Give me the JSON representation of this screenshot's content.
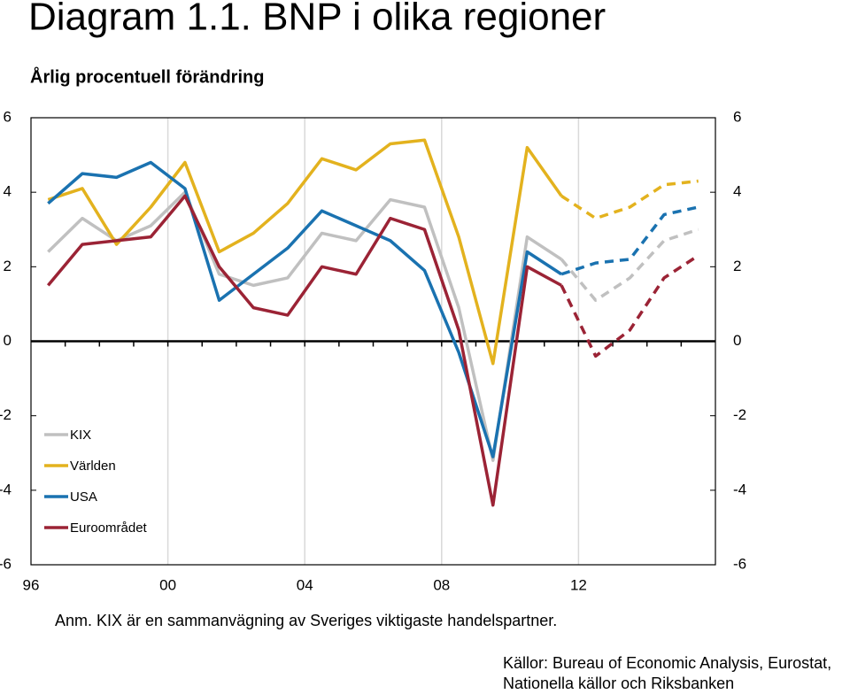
{
  "chart_data": {
    "type": "line",
    "title": "Diagram 1.1. BNP i olika regioner",
    "subtitle": "Årlig procentuell förändring",
    "note": "Anm. KIX är en sammanvägning av Sveriges viktigaste handelspartner.",
    "source": [
      "Källor: Bureau of Economic Analysis, Eurostat,",
      "Nationella källor och Riksbanken"
    ],
    "categories": [
      "96",
      null,
      null,
      null,
      "00",
      null,
      null,
      null,
      "04",
      null,
      null,
      null,
      "08",
      null,
      null,
      null,
      "12",
      null,
      null,
      null
    ],
    "dashed_from": 15,
    "ylim": [
      -6,
      6
    ],
    "yticks": [
      -6,
      -4,
      -2,
      0,
      2,
      4,
      6
    ],
    "y2lim": [
      -6,
      6
    ],
    "y2ticks": [
      -6,
      -4,
      -2,
      0,
      2,
      4,
      6
    ],
    "grid": true,
    "legend": "lower left",
    "series": [
      {
        "name": "KIX",
        "color": "#c0c0c0",
        "values": [
          2.4,
          3.3,
          2.7,
          3.1,
          4.0,
          1.8,
          1.5,
          1.7,
          2.9,
          2.7,
          3.8,
          3.6,
          0.9,
          -3.2,
          2.8,
          2.2,
          1.1,
          1.7,
          2.7,
          3.0
        ]
      },
      {
        "name": "Världen",
        "color": "#e3b21e",
        "values": [
          3.8,
          4.1,
          2.6,
          3.6,
          4.8,
          2.4,
          2.9,
          3.7,
          4.9,
          4.6,
          5.3,
          5.4,
          2.8,
          -0.6,
          5.2,
          3.9,
          3.3,
          3.6,
          4.2,
          4.3
        ]
      },
      {
        "name": "USA",
        "color": "#1a72b0",
        "values": [
          3.7,
          4.5,
          4.4,
          4.8,
          4.1,
          1.1,
          1.8,
          2.5,
          3.5,
          3.1,
          2.7,
          1.9,
          -0.3,
          -3.1,
          2.4,
          1.8,
          2.1,
          2.2,
          3.4,
          3.6
        ]
      },
      {
        "name": "Euroområdet",
        "color": "#9b2335",
        "values": [
          1.5,
          2.6,
          2.7,
          2.8,
          3.9,
          2.0,
          0.9,
          0.7,
          2.0,
          1.8,
          3.3,
          3.0,
          0.3,
          -4.4,
          2.0,
          1.5,
          -0.4,
          0.3,
          1.7,
          2.3
        ]
      }
    ]
  }
}
